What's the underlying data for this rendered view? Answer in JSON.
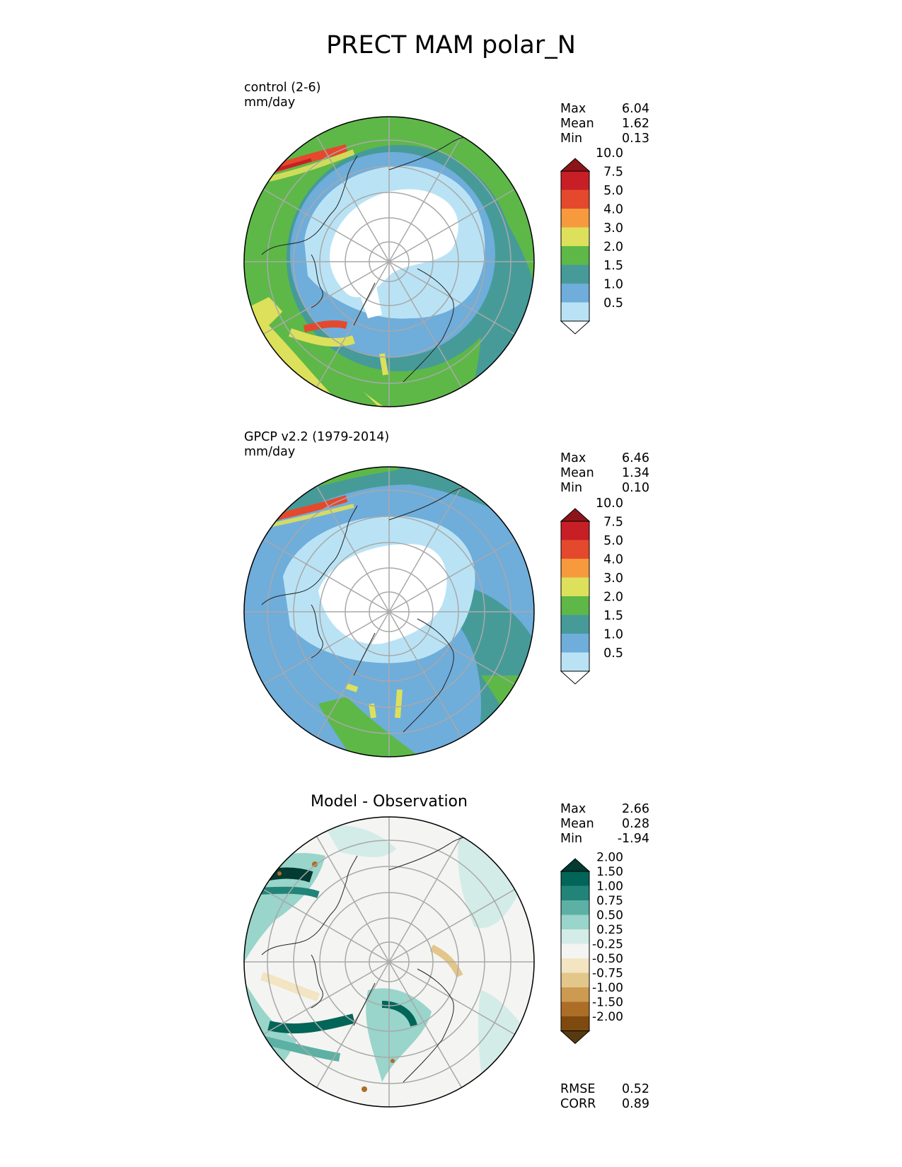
{
  "title": "PRECT MAM polar_N",
  "panels": [
    {
      "id": "test",
      "title_line1": "control (2-6)",
      "title_line2": "mm/day",
      "stats": [
        {
          "label": "Max",
          "value": "6.04"
        },
        {
          "label": "Mean",
          "value": "1.62"
        },
        {
          "label": "Min",
          "value": "0.13"
        }
      ],
      "colorbar": {
        "ticks": [
          "0.5",
          "1.0",
          "1.5",
          "2.0",
          "3.0",
          "4.0",
          "5.0",
          "7.5",
          "10.0"
        ],
        "colors": [
          "#ffffff",
          "#b9e3f5",
          "#6faddb",
          "#469b99",
          "#5db848",
          "#dde05b",
          "#f69a3d",
          "#e5492d",
          "#c71f25",
          "#8d1519"
        ]
      }
    },
    {
      "id": "ref",
      "title_line1": "GPCP v2.2 (1979-2014)",
      "title_line2": "mm/day",
      "stats": [
        {
          "label": "Max",
          "value": "6.46"
        },
        {
          "label": "Mean",
          "value": "1.34"
        },
        {
          "label": "Min",
          "value": "0.10"
        }
      ],
      "colorbar": {
        "ticks": [
          "0.5",
          "1.0",
          "1.5",
          "2.0",
          "3.0",
          "4.0",
          "5.0",
          "7.5",
          "10.0"
        ],
        "colors": [
          "#ffffff",
          "#b9e3f5",
          "#6faddb",
          "#469b99",
          "#5db848",
          "#dde05b",
          "#f69a3d",
          "#e5492d",
          "#c71f25",
          "#8d1519"
        ]
      }
    },
    {
      "id": "diff",
      "center_title": "Model - Observation",
      "stats": [
        {
          "label": "Max",
          "value": "2.66"
        },
        {
          "label": "Mean",
          "value": "0.28"
        },
        {
          "label": "Min",
          "value": "-1.94"
        }
      ],
      "colorbar": {
        "ticks": [
          "-2.00",
          "-1.50",
          "-1.00",
          "-0.75",
          "-0.50",
          "-0.25",
          "0.25",
          "0.50",
          "0.75",
          "1.00",
          "1.50",
          "2.00"
        ],
        "colors": [
          "#583a0e",
          "#7f4a0f",
          "#ac6e27",
          "#cc9a50",
          "#e3c78a",
          "#f3e4c2",
          "#f4f4f2",
          "#d3ece7",
          "#99d5ca",
          "#5db0a4",
          "#228478",
          "#016558",
          "#013b32"
        ]
      },
      "bottom_stats": [
        {
          "label": "RMSE",
          "value": "0.52"
        },
        {
          "label": "CORR",
          "value": "0.89"
        }
      ]
    }
  ],
  "chart_data": [
    {
      "type": "heatmap",
      "title": "control (2-6)",
      "units": "mm/day",
      "projection": "north-polar-stereographic",
      "stats": {
        "max": 6.04,
        "mean": 1.62,
        "min": 0.13
      },
      "contour_levels": [
        0.5,
        1.0,
        1.5,
        2.0,
        3.0,
        4.0,
        5.0,
        7.5,
        10.0
      ],
      "colorbar_extend": "both",
      "gridlines": true
    },
    {
      "type": "heatmap",
      "title": "GPCP v2.2 (1979-2014)",
      "units": "mm/day",
      "projection": "north-polar-stereographic",
      "stats": {
        "max": 6.46,
        "mean": 1.34,
        "min": 0.1
      },
      "contour_levels": [
        0.5,
        1.0,
        1.5,
        2.0,
        3.0,
        4.0,
        5.0,
        7.5,
        10.0
      ],
      "colorbar_extend": "both",
      "gridlines": true
    },
    {
      "type": "heatmap",
      "title": "Model - Observation",
      "projection": "north-polar-stereographic",
      "stats": {
        "max": 2.66,
        "mean": 0.28,
        "min": -1.94,
        "rmse": 0.52,
        "corr": 0.89
      },
      "contour_levels": [
        -2.0,
        -1.5,
        -1.0,
        -0.75,
        -0.5,
        -0.25,
        0.25,
        0.5,
        0.75,
        1.0,
        1.5,
        2.0
      ],
      "colorbar_extend": "both",
      "gridlines": true
    }
  ]
}
